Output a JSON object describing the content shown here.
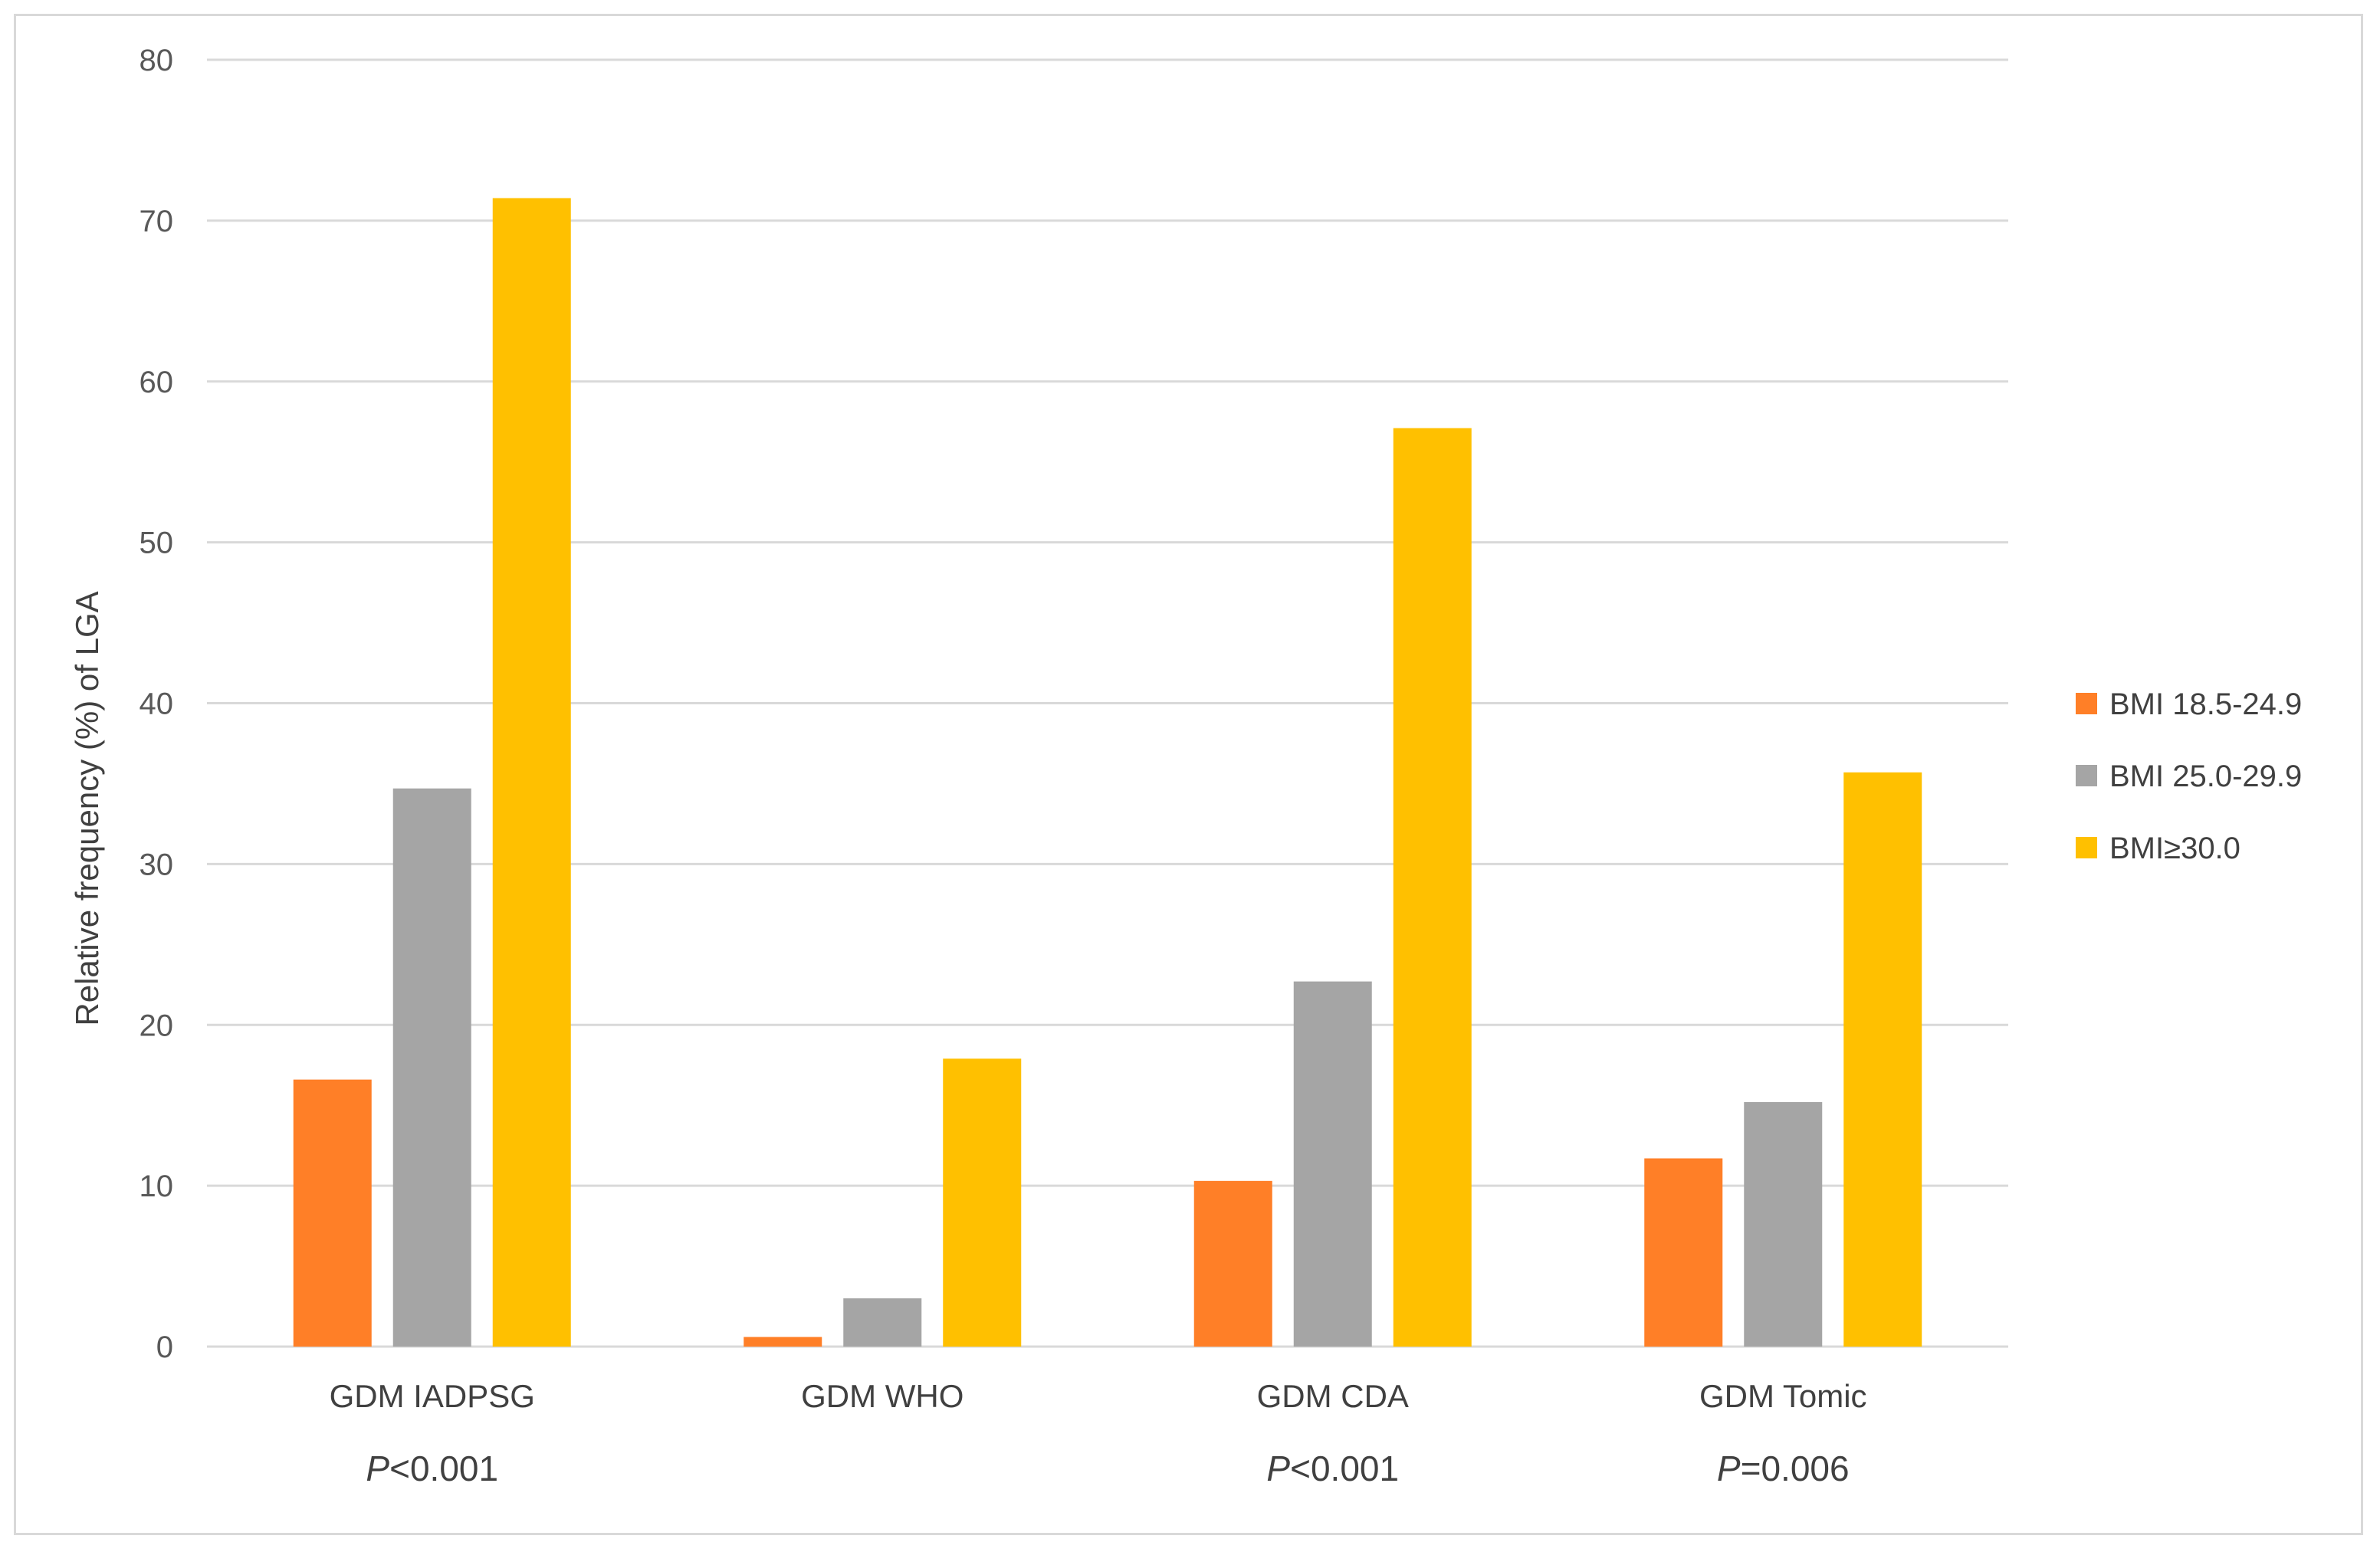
{
  "chart_data": {
    "type": "bar",
    "title": "",
    "xlabel": "",
    "ylabel": "Relative frequency (%) of LGA",
    "ylim": [
      0,
      80
    ],
    "yticks": [
      0,
      10,
      20,
      30,
      40,
      50,
      60,
      70,
      80
    ],
    "grid": true,
    "legend_position": "right",
    "categories": [
      "GDM IADPSG",
      "GDM WHO",
      "GDM CDA",
      "GDM Tomic"
    ],
    "series": [
      {
        "name": "BMI 18.5-24.9",
        "color": "#FF7F27",
        "values": [
          16.6,
          0.6,
          10.3,
          11.7
        ]
      },
      {
        "name": "BMI 25.0-29.9",
        "color": "#A5A5A5",
        "values": [
          34.7,
          3.0,
          22.7,
          15.2
        ]
      },
      {
        "name": "BMI≥30.0",
        "color": "#FFC000",
        "values": [
          71.4,
          17.9,
          57.1,
          35.7
        ]
      }
    ],
    "annotations": [
      {
        "category": "GDM IADPSG",
        "p_label": "P",
        "p_rest": "<0.001"
      },
      {
        "category": "GDM WHO",
        "p_label": "",
        "p_rest": ""
      },
      {
        "category": "GDM CDA",
        "p_label": "P",
        "p_rest": "<0.001"
      },
      {
        "category": "GDM Tomic",
        "p_label": "P",
        "p_rest": "=0.006"
      }
    ]
  }
}
